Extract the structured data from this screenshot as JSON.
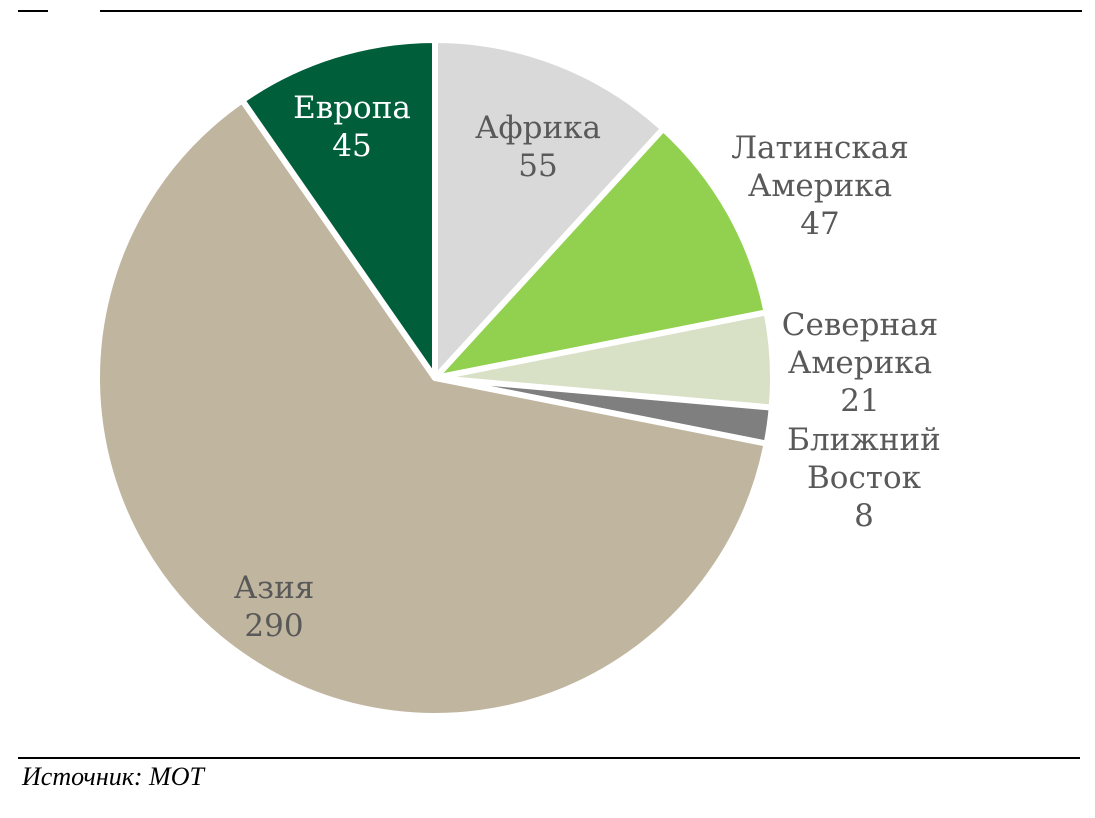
{
  "chart_data": {
    "type": "pie",
    "title": "",
    "slices": [
      {
        "label": [
          "Африка"
        ],
        "value": 55,
        "color": "#d9d9d9",
        "text_color": "#595959"
      },
      {
        "label": [
          "Латинская",
          "Америка"
        ],
        "value": 47,
        "color": "#92d050",
        "text_color": "#595959"
      },
      {
        "label": [
          "Северная",
          "Америка"
        ],
        "value": 21,
        "color": "#d8e0c5",
        "text_color": "#595959"
      },
      {
        "label": [
          "Ближний",
          "Восток"
        ],
        "value": 8,
        "color": "#7f7f7f",
        "text_color": "#595959"
      },
      {
        "label": [
          "Азия"
        ],
        "value": 290,
        "color": "#c0b59f",
        "text_color": "#595959"
      },
      {
        "label": [
          "Европа"
        ],
        "value": 45,
        "color": "#005e3a",
        "text_color": "#ffffff"
      }
    ],
    "start": "12 o'clock",
    "direction": "clockwise",
    "legend": "none"
  },
  "source": "Источник: МОТ"
}
